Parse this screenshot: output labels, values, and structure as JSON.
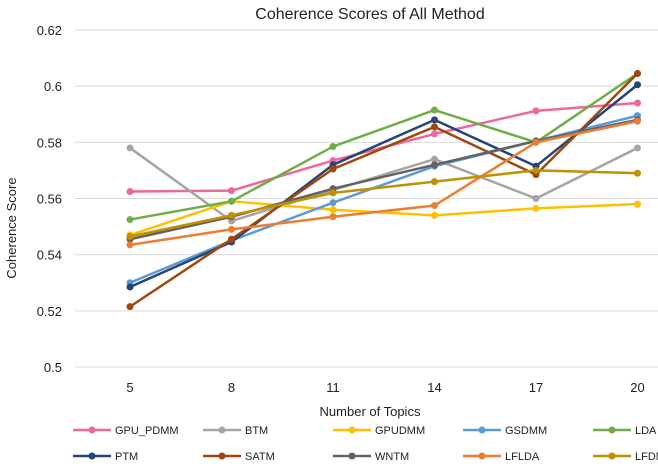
{
  "chart_data": {
    "type": "line",
    "title": "Coherence Scores of All Method",
    "xlabel": "Number of Topics",
    "ylabel": "Coherence Score",
    "x": [
      5,
      8,
      11,
      14,
      17,
      20
    ],
    "ylim": [
      0.5,
      0.62
    ],
    "yticks": [
      "0.5",
      "0.52",
      "0.54",
      "0.56",
      "0.58",
      "0.6",
      "0.62"
    ],
    "grid": "horizontal",
    "legend_position": "bottom",
    "series": [
      {
        "name": "GPU_PDMM",
        "color": "#f0679e",
        "values": [
          0.5625,
          0.5628,
          0.5735,
          0.583,
          0.5912,
          0.594
        ]
      },
      {
        "name": "BTM",
        "color": "#a5a5a5",
        "values": [
          0.578,
          0.552,
          0.563,
          0.574,
          0.56,
          0.578
        ]
      },
      {
        "name": "GPUDMM",
        "color": "#ffc000",
        "values": [
          0.547,
          0.559,
          0.556,
          0.554,
          0.5565,
          0.558
        ]
      },
      {
        "name": "GSDMM",
        "color": "#5b9bd5",
        "values": [
          0.53,
          0.545,
          0.5585,
          0.5715,
          0.5805,
          0.5895
        ]
      },
      {
        "name": "LDA",
        "color": "#70ad47",
        "values": [
          0.5525,
          0.559,
          0.5785,
          0.5915,
          0.58,
          0.6045
        ]
      },
      {
        "name": "PTM",
        "color": "#264478",
        "values": [
          0.5285,
          0.5445,
          0.572,
          0.588,
          0.5715,
          0.6005
        ]
      },
      {
        "name": "SATM",
        "color": "#9e480e",
        "values": [
          0.5215,
          0.5455,
          0.5705,
          0.5855,
          0.5685,
          0.6045
        ]
      },
      {
        "name": "WNTM",
        "color": "#636363",
        "values": [
          0.5455,
          0.5535,
          0.5635,
          0.572,
          0.5805,
          0.588
        ]
      },
      {
        "name": "LFLDA",
        "color": "#ed7d31",
        "values": [
          0.5435,
          0.549,
          0.5535,
          0.5575,
          0.58,
          0.5875
        ]
      },
      {
        "name": "LFDMM",
        "color": "#bf9000",
        "values": [
          0.5465,
          0.554,
          0.562,
          0.566,
          0.57,
          0.569
        ]
      }
    ]
  }
}
